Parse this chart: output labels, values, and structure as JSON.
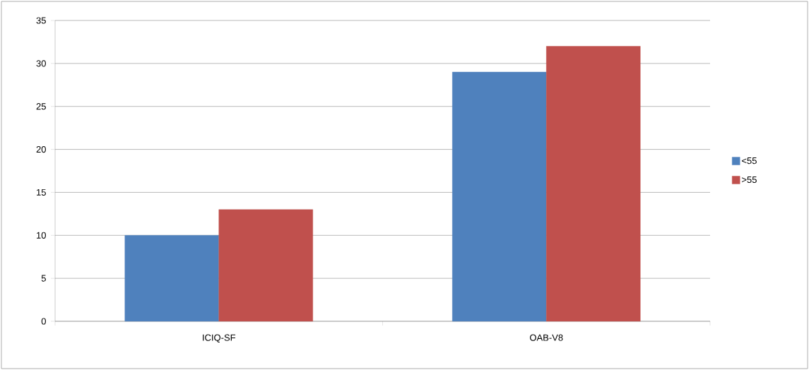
{
  "chart_data": {
    "type": "bar",
    "categories": [
      "ICIQ-SF",
      "OAB-V8"
    ],
    "series": [
      {
        "name": "<55",
        "color": "#4f81bd",
        "values": [
          10,
          29
        ]
      },
      {
        "name": ">55",
        "color": "#c0504d",
        "values": [
          13,
          32
        ]
      }
    ],
    "ylim": [
      0,
      35
    ],
    "yticks": [
      0,
      5,
      10,
      15,
      20,
      25,
      30,
      35
    ],
    "grid": "y",
    "legend": "right"
  }
}
